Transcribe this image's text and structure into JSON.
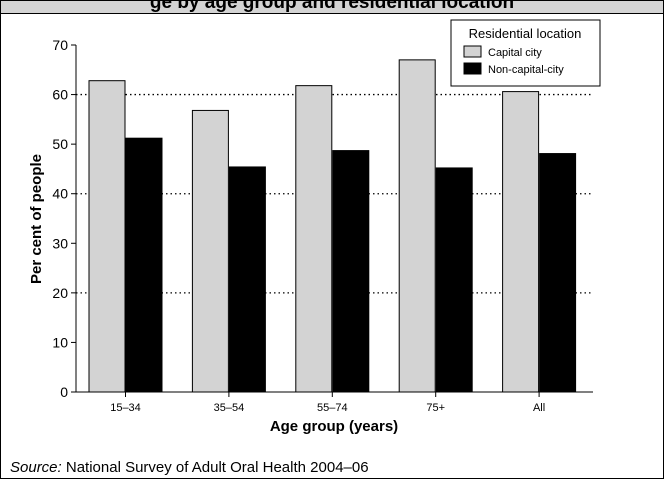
{
  "figure": {
    "title": "ge by age group and residential location",
    "source_prefix": "Source:",
    "source_text": " National Survey of Adult Oral Health 2004–06"
  },
  "chart_data": {
    "type": "bar",
    "categories": [
      "15–34",
      "35–54",
      "55–74",
      "75+",
      "All"
    ],
    "series": [
      {
        "name": "Capital city",
        "values": [
          62.8,
          56.8,
          61.8,
          67.0,
          60.6
        ],
        "color": "#d3d3d3"
      },
      {
        "name": "Non-capital-city",
        "values": [
          51.2,
          45.4,
          48.7,
          45.2,
          48.1
        ],
        "color": "#000000"
      }
    ],
    "xlabel": "Age group (years)",
    "ylabel": "Per cent of people",
    "ylim": [
      0,
      70
    ],
    "yticks": [
      0,
      10,
      20,
      30,
      40,
      50,
      60,
      70
    ],
    "gridlines": [
      20,
      40,
      60
    ],
    "grid_style": "dotted",
    "legend_title": "Residential location",
    "legend_position": "top-right"
  }
}
